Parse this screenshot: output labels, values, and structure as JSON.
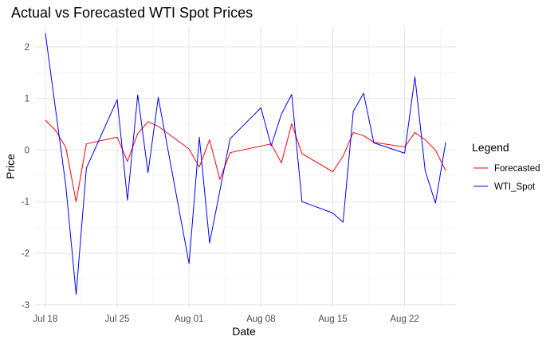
{
  "chart_data": {
    "type": "line",
    "title": "Actual vs Forecasted WTI Spot Prices",
    "xlabel": "Date",
    "ylabel": "Price",
    "x_range": [
      "2023-07-17",
      "2023-08-27"
    ],
    "x_ticks": [
      {
        "date": "2023-07-18",
        "label": "Jul 18"
      },
      {
        "date": "2023-07-25",
        "label": "Jul 25"
      },
      {
        "date": "2023-08-01",
        "label": "Aug 01"
      },
      {
        "date": "2023-08-08",
        "label": "Aug 08"
      },
      {
        "date": "2023-08-15",
        "label": "Aug 15"
      },
      {
        "date": "2023-08-22",
        "label": "Aug 22"
      }
    ],
    "ylim": [
      -3.05,
      2.4
    ],
    "y_ticks": [
      -3,
      -2,
      -1,
      0,
      1,
      2
    ],
    "grid": true,
    "legend": {
      "title": "Legend",
      "position": "right"
    },
    "series": [
      {
        "name": "Forecasted",
        "color": "#ff0000",
        "points": [
          [
            "2023-07-18",
            0.58
          ],
          [
            "2023-07-19",
            0.38
          ],
          [
            "2023-07-20",
            0.05
          ],
          [
            "2023-07-21",
            -1.0
          ],
          [
            "2023-07-22",
            0.12
          ],
          [
            "2023-07-25",
            0.25
          ],
          [
            "2023-07-26",
            -0.22
          ],
          [
            "2023-07-27",
            0.32
          ],
          [
            "2023-07-28",
            0.55
          ],
          [
            "2023-07-29",
            0.46
          ],
          [
            "2023-08-01",
            0.02
          ],
          [
            "2023-08-02",
            -0.33
          ],
          [
            "2023-08-03",
            0.2
          ],
          [
            "2023-08-04",
            -0.57
          ],
          [
            "2023-08-05",
            -0.05
          ],
          [
            "2023-08-09",
            0.12
          ],
          [
            "2023-08-10",
            -0.25
          ],
          [
            "2023-08-11",
            0.51
          ],
          [
            "2023-08-12",
            -0.07
          ],
          [
            "2023-08-15",
            -0.42
          ],
          [
            "2023-08-16",
            -0.12
          ],
          [
            "2023-08-17",
            0.34
          ],
          [
            "2023-08-18",
            0.28
          ],
          [
            "2023-08-19",
            0.15
          ],
          [
            "2023-08-22",
            0.06
          ],
          [
            "2023-08-23",
            0.34
          ],
          [
            "2023-08-24",
            0.2
          ],
          [
            "2023-08-25",
            0.0
          ],
          [
            "2023-08-26",
            -0.4
          ]
        ]
      },
      {
        "name": "WTI_Spot",
        "color": "#0000ff",
        "points": [
          [
            "2023-07-18",
            2.27
          ],
          [
            "2023-07-20",
            -0.7
          ],
          [
            "2023-07-21",
            -2.8
          ],
          [
            "2023-07-22",
            -0.35
          ],
          [
            "2023-07-25",
            0.98
          ],
          [
            "2023-07-26",
            -0.97
          ],
          [
            "2023-07-27",
            1.07
          ],
          [
            "2023-07-28",
            -0.44
          ],
          [
            "2023-07-29",
            1.02
          ],
          [
            "2023-08-01",
            -2.2
          ],
          [
            "2023-08-02",
            0.25
          ],
          [
            "2023-08-03",
            -1.8
          ],
          [
            "2023-08-05",
            0.22
          ],
          [
            "2023-08-08",
            0.82
          ],
          [
            "2023-08-09",
            0.08
          ],
          [
            "2023-08-10",
            0.7
          ],
          [
            "2023-08-11",
            1.08
          ],
          [
            "2023-08-12",
            -1.0
          ],
          [
            "2023-08-15",
            -1.22
          ],
          [
            "2023-08-16",
            -1.4
          ],
          [
            "2023-08-17",
            0.75
          ],
          [
            "2023-08-18",
            1.1
          ],
          [
            "2023-08-19",
            0.14
          ],
          [
            "2023-08-22",
            -0.06
          ],
          [
            "2023-08-23",
            1.42
          ],
          [
            "2023-08-24",
            -0.4
          ],
          [
            "2023-08-25",
            -1.03
          ],
          [
            "2023-08-26",
            0.15
          ]
        ]
      }
    ]
  }
}
